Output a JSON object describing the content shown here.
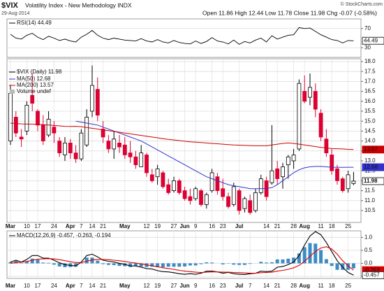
{
  "header": {
    "symbol": "$VIX",
    "name": "Volatility Index - New Methodology INDX",
    "date": "29-Aug-2014",
    "quote": "Open 11.86  High 12.44  Low 11.78  Close 11.98  Chg -0.07 (-0.58%)",
    "copyright": "© StockCharts.com"
  },
  "chart_data": [
    {
      "type": "line",
      "title": "RSI(14) 44.49",
      "color": "#000000",
      "ylim": [
        10,
        90
      ],
      "yticks": [
        30,
        70
      ],
      "grid": true,
      "values": [
        58,
        50,
        48,
        56,
        60,
        52,
        47,
        54,
        50,
        45,
        48,
        44,
        42,
        52,
        58,
        66,
        56,
        50,
        47,
        50,
        48,
        46,
        45,
        44,
        49,
        44,
        42,
        47,
        42,
        40,
        45,
        41,
        39,
        38,
        44,
        39,
        43,
        51,
        44,
        42,
        38,
        46,
        37,
        43,
        40,
        46,
        50,
        42,
        55,
        48,
        52,
        56,
        57,
        72,
        70,
        71,
        64,
        57,
        52,
        47,
        45,
        40,
        45,
        44.49
      ]
    },
    {
      "type": "candlestick",
      "title": "$VIX (Daily) 11.98",
      "annotations": [
        "Volume undef"
      ],
      "up_color": "#ffffff",
      "down_color": "#dd0033",
      "grid": true,
      "ylim": [
        9.9,
        18.14
      ],
      "yticks": [
        10.5,
        {
          "value": 11,
          "label": "11.0"
        },
        11.5,
        {
          "value": 12,
          "label": "12.0"
        },
        12.5,
        {
          "value": 13,
          "label": "13.0"
        },
        13.5,
        {
          "value": 14,
          "label": "14.0"
        },
        14.5,
        {
          "value": 15,
          "label": "15.0"
        },
        15.5,
        {
          "value": 16,
          "label": "16.0"
        },
        16.5,
        {
          "value": 17,
          "label": "17.0"
        },
        17.5,
        {
          "value": 18,
          "label": "18.0"
        }
      ],
      "categories": [
        "Mar",
        null,
        null,
        "10",
        null,
        "17",
        null,
        null,
        "24",
        null,
        null,
        "Apr",
        null,
        "7",
        null,
        "14",
        null,
        "21",
        null,
        null,
        null,
        "May",
        null,
        null,
        null,
        "12",
        null,
        "19",
        null,
        null,
        "27",
        null,
        "Jun",
        null,
        "9",
        null,
        null,
        "16",
        null,
        "23",
        null,
        null,
        "Jul",
        null,
        null,
        null,
        null,
        "14",
        null,
        "21",
        null,
        null,
        "28",
        null,
        "Aug",
        null,
        null,
        "11",
        null,
        "18",
        null,
        null,
        "25",
        null
      ],
      "ohlc": [
        [
          14.0,
          16.8,
          13.8,
          16.4
        ],
        [
          15.2,
          15.5,
          14.2,
          14.4
        ],
        [
          14.2,
          14.6,
          13.7,
          14.1
        ],
        [
          14.5,
          16.0,
          14.3,
          15.8
        ],
        [
          16.3,
          17.4,
          15.5,
          15.9
        ],
        [
          15.5,
          15.6,
          14.5,
          14.8
        ],
        [
          14.8,
          15.3,
          13.8,
          14.0
        ],
        [
          14.3,
          15.5,
          14.2,
          15.1
        ],
        [
          14.7,
          15.0,
          13.9,
          14.4
        ],
        [
          14.0,
          14.2,
          13.2,
          13.4
        ],
        [
          13.3,
          14.2,
          13.0,
          13.9
        ],
        [
          13.9,
          14.1,
          13.1,
          13.4
        ],
        [
          13.4,
          13.8,
          12.9,
          13.1
        ],
        [
          13.1,
          14.6,
          13.0,
          14.4
        ],
        [
          13.8,
          15.6,
          13.7,
          15.2
        ],
        [
          15.5,
          17.8,
          15.2,
          16.8
        ],
        [
          16.6,
          17.2,
          15.0,
          15.3
        ],
        [
          14.6,
          15.0,
          13.9,
          14.2
        ],
        [
          14.0,
          14.3,
          13.4,
          13.6
        ],
        [
          13.6,
          14.5,
          13.1,
          14.1
        ],
        [
          13.9,
          14.3,
          13.4,
          13.7
        ],
        [
          13.8,
          14.2,
          13.1,
          13.3
        ],
        [
          13.4,
          14.0,
          12.9,
          13.2
        ],
        [
          13.2,
          13.5,
          12.6,
          12.8
        ],
        [
          12.7,
          13.8,
          12.7,
          13.4
        ],
        [
          13.3,
          13.4,
          12.2,
          12.4
        ],
        [
          12.3,
          12.6,
          11.9,
          12.0
        ],
        [
          12.2,
          12.8,
          11.8,
          12.6
        ],
        [
          12.4,
          12.5,
          11.6,
          11.7
        ],
        [
          11.8,
          12.1,
          11.3,
          11.4
        ],
        [
          11.5,
          12.2,
          11.4,
          12.0
        ],
        [
          12.0,
          12.1,
          11.3,
          11.4
        ],
        [
          11.5,
          11.7,
          11.0,
          11.1
        ],
        [
          11.2,
          11.6,
          10.8,
          11.0
        ],
        [
          11.1,
          11.7,
          11.0,
          11.6
        ],
        [
          11.5,
          11.6,
          10.7,
          10.8
        ],
        [
          10.8,
          11.4,
          10.6,
          11.3
        ],
        [
          11.5,
          12.6,
          11.4,
          12.4
        ],
        [
          12.2,
          12.4,
          11.3,
          11.5
        ],
        [
          11.6,
          12.1,
          11.0,
          11.2
        ],
        [
          11.2,
          11.4,
          10.6,
          10.7
        ],
        [
          10.8,
          11.9,
          10.7,
          11.7
        ],
        [
          11.5,
          11.6,
          10.3,
          10.5
        ],
        [
          10.6,
          11.2,
          10.4,
          11.1
        ],
        [
          11.0,
          11.3,
          10.3,
          10.4
        ],
        [
          10.5,
          11.6,
          10.4,
          11.4
        ],
        [
          11.4,
          12.3,
          11.3,
          12.1
        ],
        [
          12.0,
          12.2,
          11.0,
          11.2
        ],
        [
          11.9,
          14.8,
          11.8,
          12.5
        ],
        [
          12.6,
          13.0,
          11.8,
          12.1
        ],
        [
          12.2,
          12.9,
          11.6,
          12.7
        ],
        [
          12.8,
          13.3,
          12.1,
          13.2
        ],
        [
          13.0,
          13.6,
          12.6,
          13.3
        ],
        [
          13.6,
          17.1,
          13.5,
          16.9
        ],
        [
          16.5,
          17.3,
          15.9,
          16.0
        ],
        [
          16.2,
          17.4,
          15.8,
          16.7
        ],
        [
          16.5,
          16.9,
          15.2,
          15.6
        ],
        [
          15.4,
          15.6,
          14.0,
          14.2
        ],
        [
          14.1,
          14.6,
          13.2,
          13.4
        ],
        [
          13.3,
          13.6,
          12.3,
          12.5
        ],
        [
          12.6,
          12.8,
          11.8,
          12.0
        ],
        [
          12.1,
          12.2,
          11.4,
          11.5
        ],
        [
          11.6,
          12.5,
          11.4,
          12.3
        ],
        [
          11.86,
          12.44,
          11.78,
          11.98
        ]
      ],
      "series": [
        {
          "name": "MA(50) 12.68",
          "color": "#3333cc",
          "values": [
            null,
            null,
            null,
            null,
            null,
            null,
            null,
            null,
            null,
            null,
            null,
            null,
            15.0,
            14.95,
            14.9,
            14.85,
            14.8,
            14.7,
            14.6,
            14.5,
            14.4,
            14.3,
            14.2,
            14.1,
            14.0,
            13.85,
            13.7,
            13.55,
            13.4,
            13.25,
            13.1,
            12.95,
            12.8,
            12.65,
            12.5,
            12.35,
            12.2,
            12.1,
            12.0,
            11.9,
            11.8,
            11.75,
            11.7,
            11.65,
            11.6,
            11.6,
            11.6,
            11.62,
            11.65,
            11.8,
            12.0,
            12.2,
            12.4,
            12.55,
            12.65,
            12.7,
            12.72,
            12.72,
            12.7,
            12.68,
            12.68,
            12.67,
            12.68,
            12.68
          ]
        },
        {
          "name": "MA(200) 13.57",
          "color": "#cc0000",
          "values": [
            14.9,
            14.88,
            14.86,
            14.85,
            14.85,
            14.84,
            14.82,
            14.8,
            14.78,
            14.76,
            14.74,
            14.73,
            14.74,
            14.72,
            14.68,
            14.64,
            14.6,
            14.56,
            14.52,
            14.48,
            14.44,
            14.4,
            14.36,
            14.32,
            14.28,
            14.24,
            14.2,
            14.16,
            14.12,
            14.08,
            14.05,
            14.02,
            13.99,
            13.96,
            13.94,
            13.92,
            13.9,
            13.88,
            13.86,
            13.84,
            13.82,
            13.8,
            13.79,
            13.78,
            13.77,
            13.76,
            13.76,
            13.76,
            13.8,
            13.84,
            13.88,
            13.9,
            13.88,
            13.84,
            13.8,
            13.76,
            13.72,
            13.68,
            13.65,
            13.62,
            13.61,
            13.6,
            13.58,
            13.57
          ]
        }
      ]
    },
    {
      "type": "macd",
      "title": "MACD(12,26,9) -0.457, -0.263, -0.194",
      "grid": true,
      "ylim": [
        -0.58,
        1.25
      ],
      "yticks": [
        {
          "value": -0.5,
          "label": "-0.5"
        },
        {
          "value": 0,
          "label": "0.0"
        },
        0.5,
        {
          "value": 1,
          "label": "1.0"
        }
      ],
      "categories": [
        "Mar",
        null,
        null,
        "10",
        null,
        "17",
        null,
        null,
        "24",
        null,
        null,
        "Apr",
        null,
        "7",
        null,
        "14",
        null,
        "21",
        null,
        null,
        null,
        "May",
        null,
        null,
        null,
        "12",
        null,
        "19",
        null,
        null,
        "27",
        null,
        "Jun",
        null,
        "9",
        null,
        null,
        "16",
        null,
        "23",
        null,
        null,
        "Jul",
        null,
        "7",
        null,
        null,
        "14",
        null,
        "21",
        null,
        null,
        "28",
        null,
        "Aug",
        null,
        null,
        "11",
        null,
        "18",
        null,
        null,
        "25",
        null
      ],
      "histogram": {
        "color": "#3d8bc4",
        "values": [
          0.05,
          0.09,
          0.01,
          0.08,
          0.18,
          0.14,
          0.03,
          0.02,
          -0.05,
          -0.12,
          -0.15,
          -0.14,
          -0.13,
          0.02,
          0.22,
          0.22,
          0.1,
          -0.03,
          -0.06,
          -0.07,
          -0.1,
          -0.11,
          -0.14,
          -0.11,
          -0.13,
          -0.14,
          -0.13,
          -0.15,
          -0.15,
          -0.13,
          -0.13,
          -0.13,
          -0.12,
          -0.08,
          -0.08,
          -0.03,
          0.04,
          0.03,
          0,
          -0.04,
          -0.01,
          -0.05,
          -0.06,
          -0.06,
          -0.02,
          0,
          0.06,
          0.03,
          0.04,
          0.15,
          0.15,
          0.18,
          0.22,
          0.38,
          0.62,
          0.78,
          0.76,
          0.51,
          0.16,
          -0.1,
          -0.25,
          -0.25,
          -0.25,
          -0.194
        ]
      },
      "series": [
        {
          "color": "#000000",
          "values": [
            0.05,
            0.12,
            0.05,
            0.15,
            0.3,
            0.3,
            0.2,
            0.2,
            0.12,
            0.02,
            -0.05,
            -0.08,
            -0.1,
            0.05,
            0.3,
            0.35,
            0.25,
            0.12,
            0.08,
            0.05,
            0.0,
            -0.04,
            -0.1,
            -0.1,
            -0.15,
            -0.2,
            -0.22,
            -0.28,
            -0.32,
            -0.33,
            -0.36,
            -0.4,
            -0.42,
            -0.4,
            -0.42,
            -0.38,
            -0.3,
            -0.3,
            -0.33,
            -0.38,
            -0.35,
            -0.4,
            -0.42,
            -0.43,
            -0.4,
            -0.38,
            -0.3,
            -0.32,
            -0.3,
            -0.15,
            -0.12,
            -0.05,
            0.05,
            0.3,
            0.7,
            1.05,
            1.22,
            1.1,
            0.8,
            0.45,
            0.1,
            -0.15,
            -0.35,
            -0.457
          ]
        },
        {
          "color": "#dd0000",
          "values": [
            0.0,
            0.03,
            0.04,
            0.07,
            0.12,
            0.16,
            0.17,
            0.18,
            0.17,
            0.14,
            0.1,
            0.06,
            0.03,
            0.03,
            0.08,
            0.13,
            0.15,
            0.15,
            0.14,
            0.12,
            0.1,
            0.07,
            0.04,
            0.01,
            -0.02,
            -0.06,
            -0.09,
            -0.13,
            -0.17,
            -0.2,
            -0.23,
            -0.27,
            -0.3,
            -0.32,
            -0.34,
            -0.35,
            -0.34,
            -0.33,
            -0.33,
            -0.34,
            -0.34,
            -0.35,
            -0.36,
            -0.37,
            -0.38,
            -0.38,
            -0.36,
            -0.35,
            -0.34,
            -0.3,
            -0.27,
            -0.23,
            -0.17,
            -0.08,
            0.08,
            0.27,
            0.46,
            0.59,
            0.64,
            0.55,
            0.35,
            0.1,
            -0.1,
            -0.263
          ]
        }
      ]
    }
  ]
}
